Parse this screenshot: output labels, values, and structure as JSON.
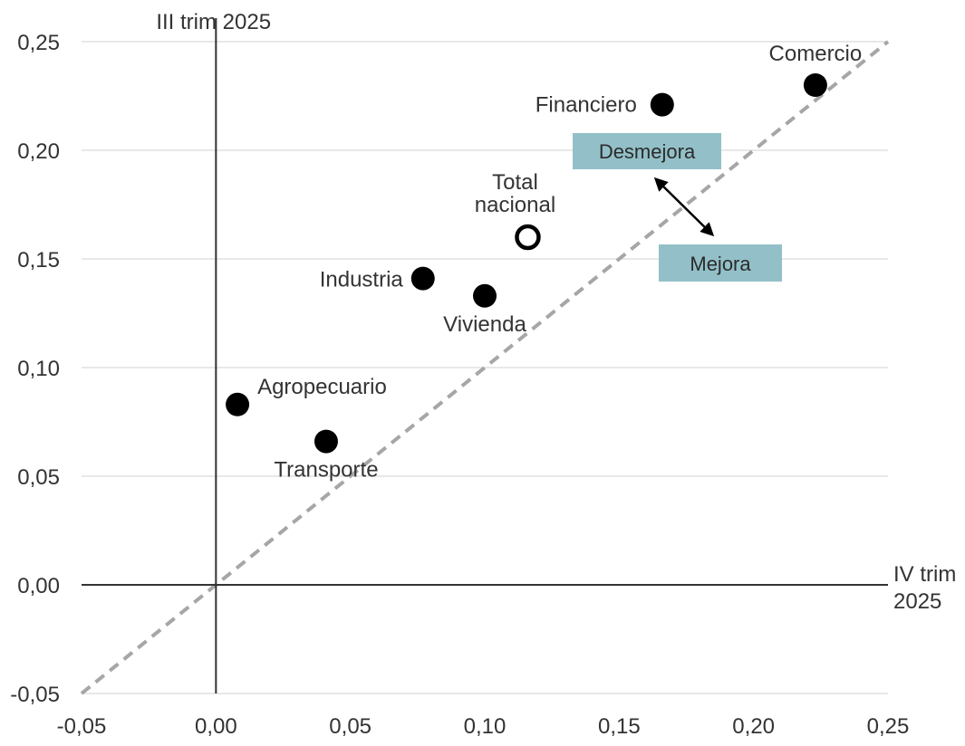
{
  "chart_data": {
    "type": "scatter",
    "xlabel_lines": [
      "IV trim",
      "2025"
    ],
    "ylabel": "III trim 2025",
    "xlim": [
      -0.05,
      0.25
    ],
    "ylim": [
      -0.05,
      0.25
    ],
    "x_ticks": [
      -0.05,
      0.0,
      0.05,
      0.1,
      0.15,
      0.2,
      0.25
    ],
    "y_ticks": [
      -0.05,
      0.0,
      0.05,
      0.1,
      0.15,
      0.2,
      0.25
    ],
    "x_tick_labels": [
      "-0,05",
      "0,00",
      "0,05",
      "0,10",
      "0,15",
      "0,20",
      "0,25"
    ],
    "y_tick_labels": [
      "-0,05",
      "0,00",
      "0,05",
      "0,10",
      "0,15",
      "0,20",
      "0,25"
    ],
    "grid": "horizontal",
    "reference_line": "y = x (dashed)",
    "points": [
      {
        "name": "Comercio",
        "x": 0.223,
        "y": 0.23,
        "filled": true
      },
      {
        "name": "Financiero",
        "x": 0.166,
        "y": 0.221,
        "filled": true
      },
      {
        "name": "Total nacional",
        "x": 0.116,
        "y": 0.16,
        "filled": false
      },
      {
        "name": "Industria",
        "x": 0.077,
        "y": 0.141,
        "filled": true
      },
      {
        "name": "Vivienda",
        "x": 0.1,
        "y": 0.133,
        "filled": true
      },
      {
        "name": "Agropecuario",
        "x": 0.008,
        "y": 0.083,
        "filled": true
      },
      {
        "name": "Transporte",
        "x": 0.041,
        "y": 0.066,
        "filled": true
      }
    ],
    "annotations": {
      "worse": "Desmejora",
      "better": "Mejora"
    },
    "colors": {
      "points": "#000000",
      "reference_line": "#a6a6a6",
      "annotation_box": "#93c0c8",
      "grid": "#d9d9d9",
      "axis": "#333333"
    }
  }
}
